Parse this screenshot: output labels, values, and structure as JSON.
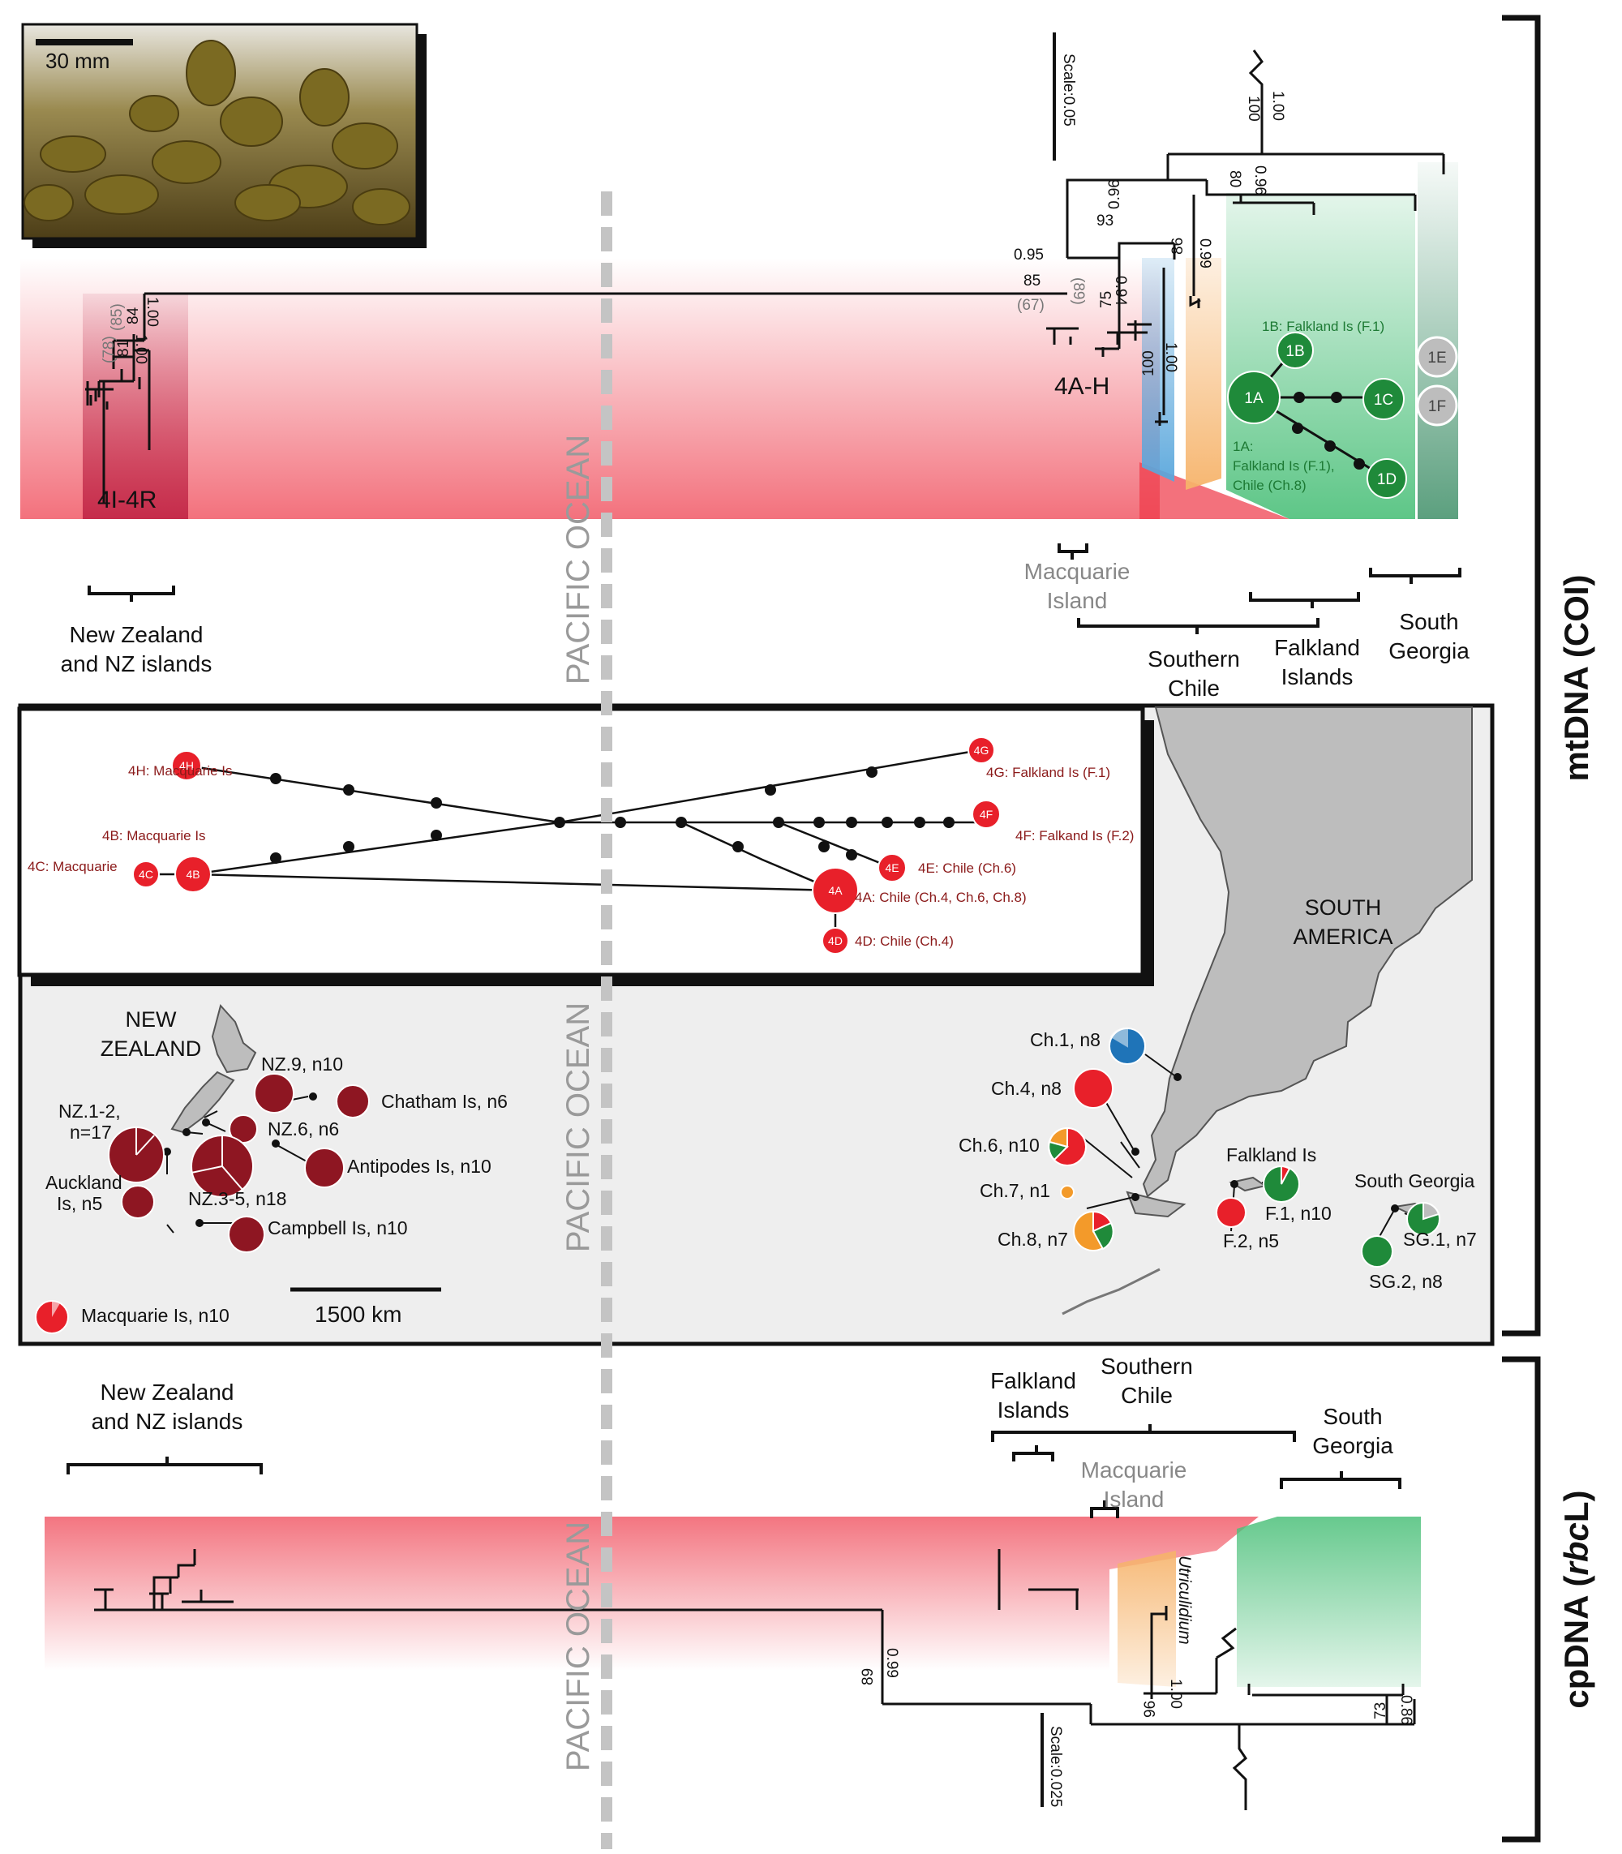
{
  "inset": {
    "scale_label": "30 mm"
  },
  "mt": {
    "scale_label": "Scale:0.05",
    "nz_clade_label": "4I-4R",
    "mac_clade_label": "4A-H",
    "node_labels": {
      "root_100": "100",
      "root_100pp": "1.00",
      "n_80": "80",
      "n_096a": "0.96",
      "n_93": "93",
      "n_096b": "0.96",
      "n_86": "86",
      "n_099": "0.99",
      "n_095": "0.95",
      "n_85": "85",
      "n_67": "(67)",
      "n_89": "(89)",
      "n_75": "75",
      "n_094": "0.94",
      "n_100b": "100",
      "n_100c": "1.00",
      "nz_100": "1.00",
      "nz_85": "(85)",
      "nz_84": "84",
      "nz_78": "(78)",
      "nz_81": "81",
      "nz_100b": "1.00"
    },
    "haplotypes": {
      "h1A": "1A",
      "h1B": "1B",
      "h1C": "1C",
      "h1D": "1D",
      "h1E": "1E",
      "h1F": "1F",
      "lab1B": "1B: Falkland Is (F.1)",
      "lab1A_1": "1A:",
      "lab1A_2": "Falkland Is (F.1),",
      "lab1A_3": "Chile (Ch.8)"
    },
    "regions": {
      "nz_1": "New Zealand",
      "nz_2": "and NZ islands",
      "mac_1": "Macquarie",
      "mac_2": "Island",
      "sch_1": "Southern",
      "sch_2": "Chile",
      "fal_1": "Falkland",
      "fal_2": "Islands",
      "sg_1": "South",
      "sg_2": "Georgia"
    },
    "side_label": "mtDNA (COI)"
  },
  "ocean_label": "PACIFIC OCEAN",
  "network": {
    "h4H": "4H",
    "h4B": "4B",
    "h4C": "4C",
    "h4A": "4A",
    "h4D": "4D",
    "h4E": "4E",
    "h4F": "4F",
    "h4G": "4G",
    "lab4H": "4H:  Macquarie Is",
    "lab4B": "4B:  Macquarie Is",
    "lab4C": "4C:  Macquarie",
    "lab4A": "4A: Chile (Ch.4, Ch.6, Ch.8)",
    "lab4D": "4D: Chile (Ch.4)",
    "lab4E": "4E: Chile (Ch.6)",
    "lab4F": "4F: Falkand Is (F.2)",
    "lab4G": "4G:  Falkland Is (F.1)"
  },
  "map": {
    "nz_title_1": "NEW",
    "nz_title_2": "ZEALAND",
    "sa_title_1": "SOUTH",
    "sa_title_2": "AMERICA",
    "nz9": "NZ.9, n10",
    "chatham": "Chatham Is, n6",
    "nz12_1": "NZ.1-2,",
    "nz12_2": "n=17",
    "nz6": "NZ.6, n6",
    "antipodes": "Antipodes Is, n10",
    "auck_1": "Auckland",
    "auck_2": "Is, n5",
    "nz35": "NZ.3-5, n18",
    "campbell": "Campbell Is, n10",
    "macq": "Macquarie Is, n10",
    "scale_label": "1500 km",
    "ch1": "Ch.1, n8",
    "ch4": "Ch.4, n8",
    "ch6": "Ch.6, n10",
    "ch7": "Ch.7, n1",
    "ch8": "Ch.8, n7",
    "falk_title": "Falkland Is",
    "f1": "F.1, n10",
    "f2": "F.2, n5",
    "sg_title": "South Georgia",
    "sg1": "SG.1, n7",
    "sg2": "SG.2, n8"
  },
  "cp": {
    "regions": {
      "nz_1": "New Zealand",
      "nz_2": "and NZ islands",
      "fal_1": "Falkland",
      "fal_2": "Islands",
      "sch_1": "Southern",
      "sch_2": "Chile",
      "mac_1": "Macquarie",
      "mac_2": "Island",
      "sg_1": "South",
      "sg_2": "Georgia"
    },
    "utric": "Utriculidium",
    "node_labels": {
      "n_89": "89",
      "n_099": "0.99",
      "n_96": "96",
      "n_100": "1.00",
      "n_73": "73",
      "n_086": "0.86"
    },
    "scale_label": "Scale:0.025",
    "side_label_1": "cpDNA (",
    "side_label_2": "rbc",
    "side_label_3": "L)"
  },
  "colors": {
    "nz_red": "#8e1622",
    "red": "#e8202a",
    "green": "#1f8a3a",
    "orange": "#f39a2a",
    "blue": "#1f74b8",
    "grey": "#bdbdbd",
    "dark_text_red": "#8b1a1a",
    "green_text": "#1d7a34"
  }
}
